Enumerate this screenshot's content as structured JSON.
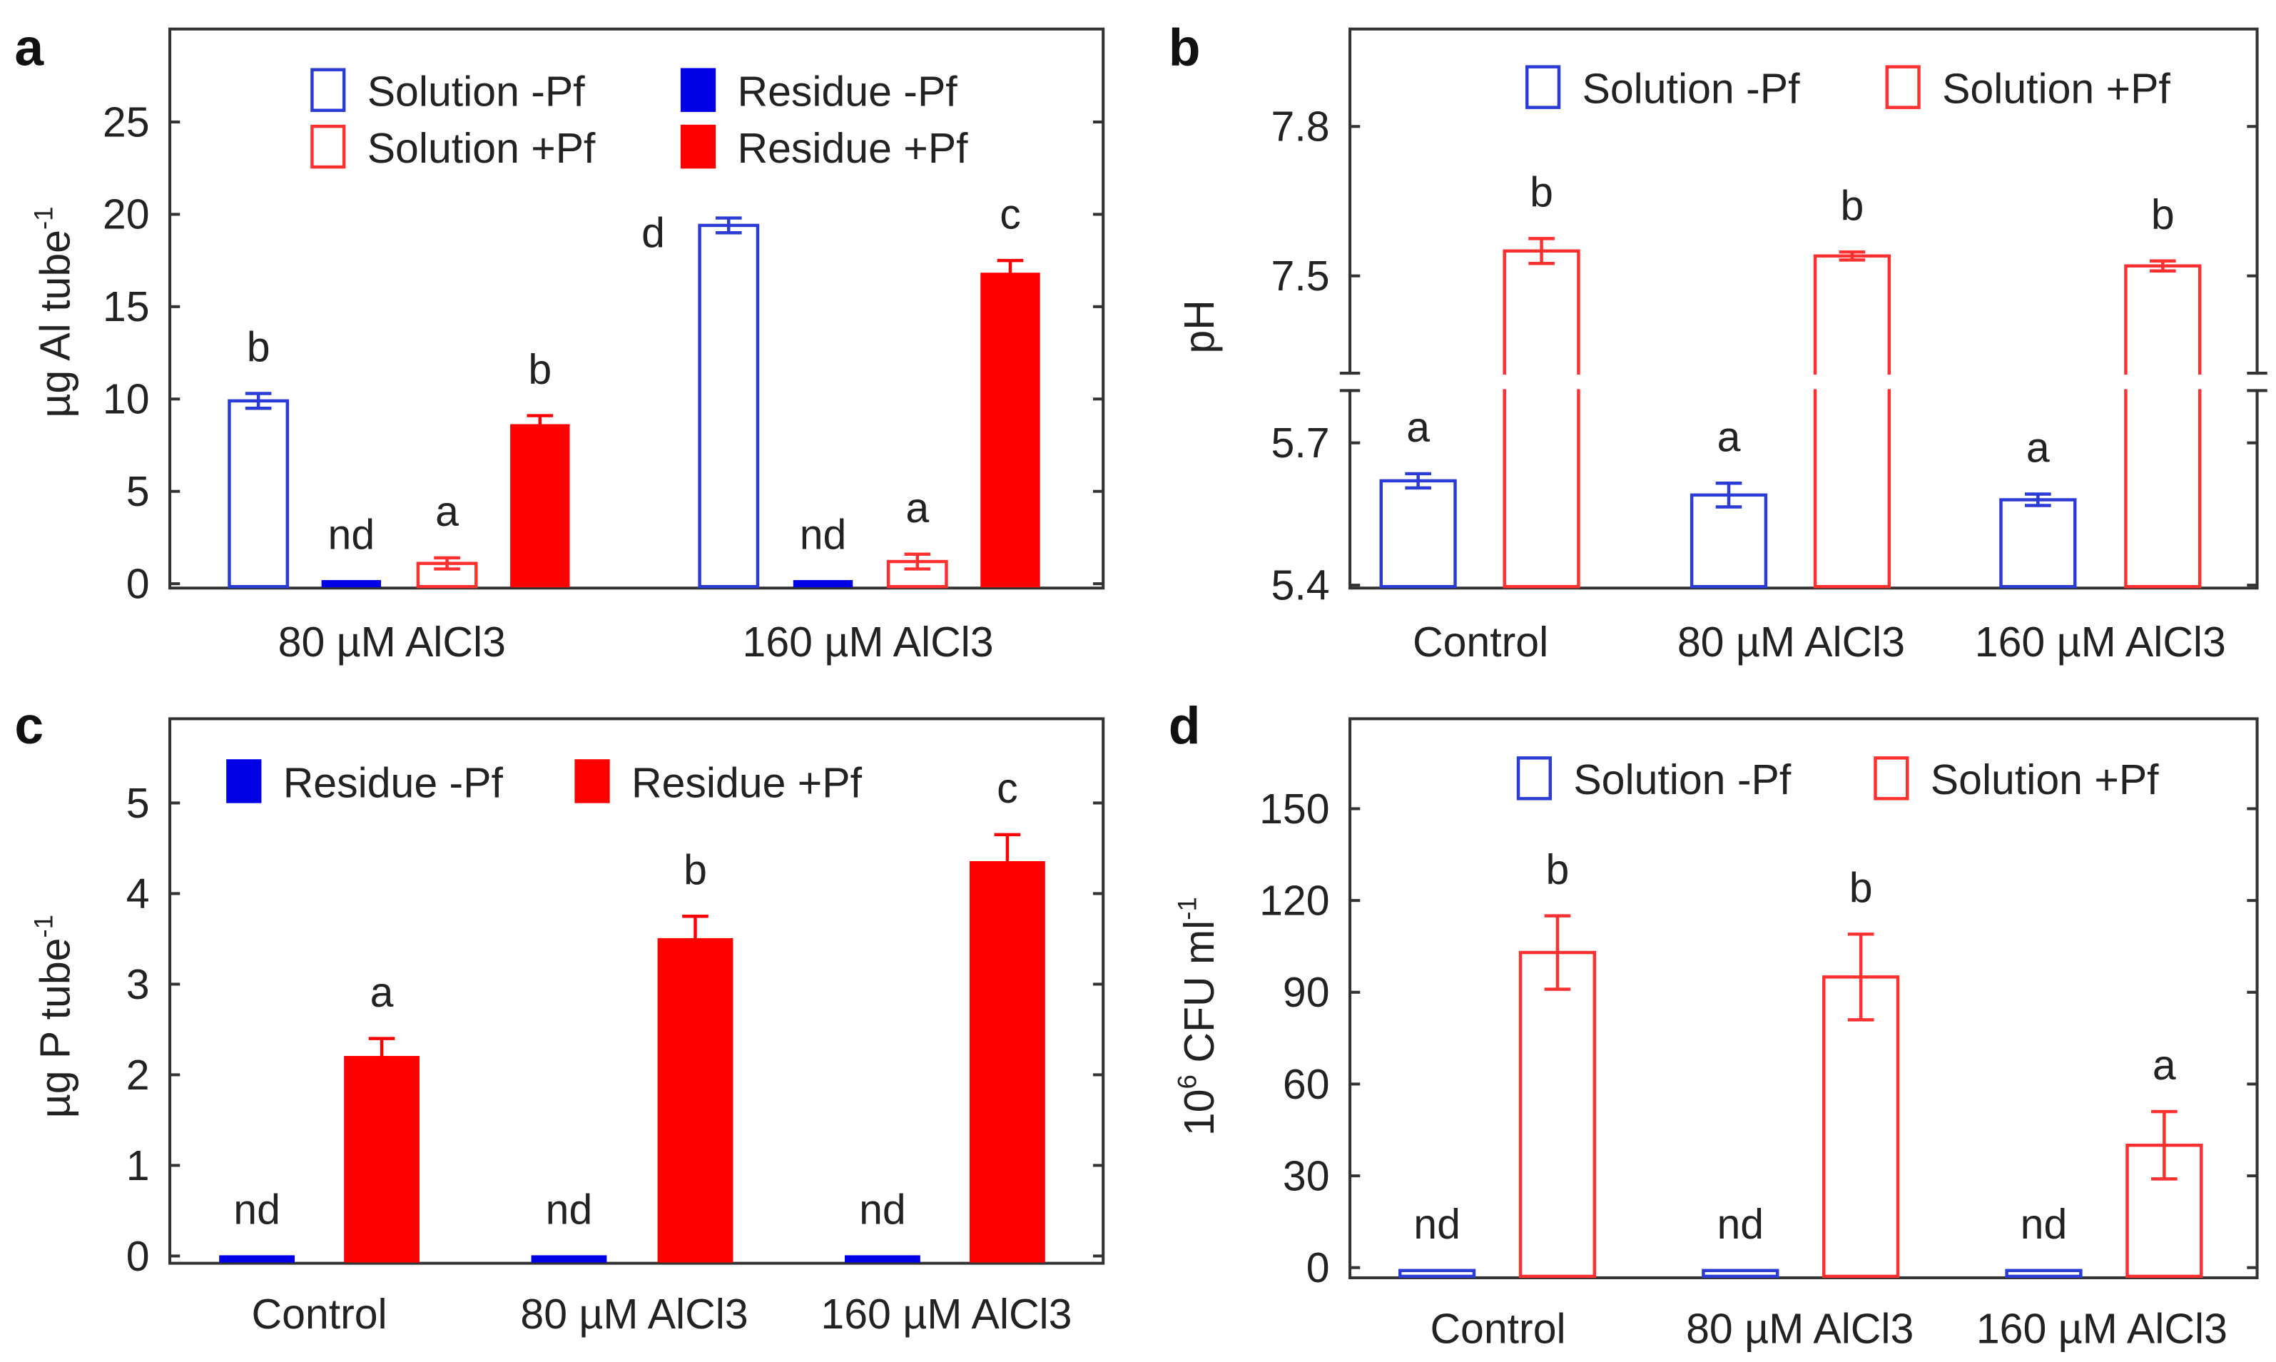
{
  "colors": {
    "blue_outline": "#2b3bd6",
    "blue_fill": "#0000e6",
    "red_outline": "#ff3030",
    "red_fill": "#ff0000",
    "axis": "#333333"
  },
  "chart_data": [
    {
      "panel": "a",
      "type": "bar",
      "ylabel_parts": [
        {
          "t": "µg Al tube"
        },
        {
          "t": "-1",
          "sup": true
        }
      ],
      "categories": [
        "80 µM AlCl3",
        "160 µM AlCl3"
      ],
      "ylim": [
        0,
        30
      ],
      "yticks": [
        0,
        5,
        10,
        15,
        20,
        25
      ],
      "legend_placement": "top",
      "series": [
        {
          "name": "Solution -Pf",
          "style": "outline",
          "color": "#2b3bd6",
          "values": [
            9.9,
            19.4
          ],
          "errors": [
            0.4,
            0.4
          ],
          "letters": [
            "b",
            "d"
          ]
        },
        {
          "name": "Residue -Pf",
          "style": "fill",
          "color": "#0000e6",
          "values": [
            0,
            0
          ],
          "errors": [
            0,
            0
          ],
          "letters": [
            "nd",
            "nd"
          ]
        },
        {
          "name": "Solution +Pf",
          "style": "outline",
          "color": "#ff3030",
          "values": [
            1.1,
            1.2
          ],
          "errors": [
            0.3,
            0.4
          ],
          "letters": [
            "a",
            "a"
          ]
        },
        {
          "name": "Residue +Pf",
          "style": "fill",
          "color": "#ff0000",
          "values": [
            8.6,
            16.8
          ],
          "errors": [
            0.5,
            0.7
          ],
          "letters": [
            "b",
            "c"
          ]
        }
      ]
    },
    {
      "panel": "b",
      "type": "bar",
      "ylabel_parts": [
        {
          "t": "pH"
        }
      ],
      "categories": [
        "Control",
        "80 µM AlCl3",
        "160 µM AlCl3"
      ],
      "ylim": [
        5.4,
        8.0
      ],
      "axis_break": [
        5.82,
        7.29
      ],
      "yticks": [
        5.4,
        5.7,
        7.5,
        7.8
      ],
      "ytick_labels": [
        "5.4",
        "5.7",
        "7.5",
        "7.8"
      ],
      "legend_placement": "top-right",
      "series": [
        {
          "name": "Solution -Pf",
          "style": "outline",
          "color": "#2b3bd6",
          "values": [
            5.62,
            5.59,
            5.58
          ],
          "errors": [
            0.015,
            0.025,
            0.012
          ],
          "letters": [
            "a",
            "a",
            "a"
          ]
        },
        {
          "name": "Solution +Pf",
          "style": "outline",
          "color": "#ff3030",
          "values": [
            7.55,
            7.54,
            7.52
          ],
          "errors": [
            0.025,
            0.008,
            0.01
          ],
          "letters": [
            "b",
            "b",
            "b"
          ]
        }
      ]
    },
    {
      "panel": "c",
      "type": "bar",
      "ylabel_parts": [
        {
          "t": "µg P tube"
        },
        {
          "t": "-1",
          "sup": true
        }
      ],
      "categories": [
        "Control",
        "80 µM AlCl3",
        "160 µM AlCl3"
      ],
      "ylim": [
        0,
        5.9
      ],
      "yticks": [
        0,
        1,
        2,
        3,
        4,
        5
      ],
      "legend_placement": "top-left",
      "series": [
        {
          "name": "Residue -Pf",
          "style": "fill",
          "color": "#0000e6",
          "values": [
            0,
            0,
            0
          ],
          "errors": [
            0,
            0,
            0
          ],
          "letters": [
            "nd",
            "nd",
            "nd"
          ]
        },
        {
          "name": "Residue +Pf",
          "style": "fill",
          "color": "#ff0000",
          "values": [
            2.2,
            3.5,
            4.35
          ],
          "errors": [
            0.2,
            0.25,
            0.3
          ],
          "letters": [
            "a",
            "b",
            "c"
          ]
        }
      ]
    },
    {
      "panel": "d",
      "type": "bar",
      "ylabel_parts": [
        {
          "t": "10"
        },
        {
          "t": "6",
          "sup": true
        },
        {
          "t": " CFU ml"
        },
        {
          "t": "-1",
          "sup": true
        }
      ],
      "categories": [
        "Control",
        "80 µM AlCl3",
        "160 µM AlCl3"
      ],
      "ylim": [
        0,
        180
      ],
      "yticks": [
        0,
        30,
        60,
        90,
        120,
        150
      ],
      "legend_placement": "top-right",
      "series": [
        {
          "name": "Solution -Pf",
          "style": "outline",
          "color": "#2b3bd6",
          "values": [
            0,
            0,
            0
          ],
          "errors": [
            0,
            0,
            0
          ],
          "letters": [
            "nd",
            "nd",
            "nd"
          ]
        },
        {
          "name": "Solution +Pf",
          "style": "outline",
          "color": "#ff3030",
          "values": [
            103,
            95,
            40
          ],
          "errors": [
            12,
            14,
            11
          ],
          "letters": [
            "b",
            "b",
            "a"
          ]
        }
      ]
    }
  ]
}
